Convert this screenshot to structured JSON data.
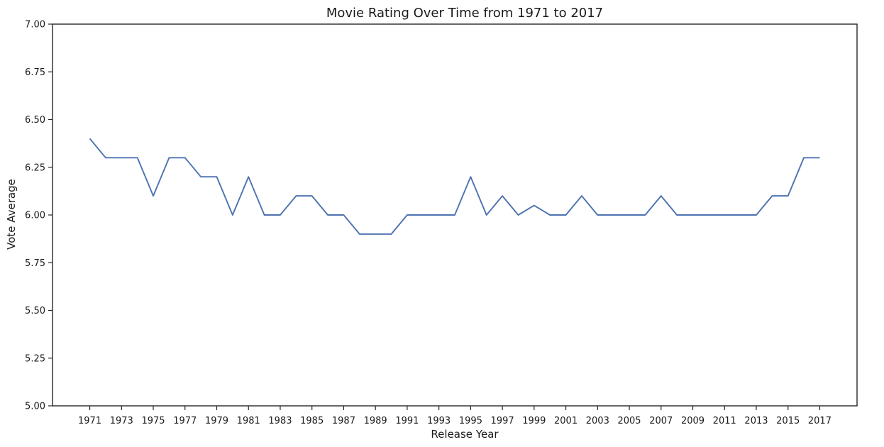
{
  "chart_data": {
    "type": "line",
    "title": "Movie Rating Over Time from 1971 to 2017",
    "xlabel": "Release Year",
    "ylabel": "Vote Average",
    "ylim": [
      5.0,
      7.0
    ],
    "yticks": [
      5.0,
      5.25,
      5.5,
      5.75,
      6.0,
      6.25,
      6.5,
      6.75,
      7.0
    ],
    "ytick_labels": [
      "5.00",
      "5.25",
      "5.50",
      "5.75",
      "6.00",
      "6.25",
      "6.50",
      "6.75",
      "7.00"
    ],
    "xticks": [
      1971,
      1973,
      1975,
      1977,
      1979,
      1981,
      1983,
      1985,
      1987,
      1989,
      1991,
      1993,
      1995,
      1997,
      1999,
      2001,
      2003,
      2005,
      2007,
      2009,
      2011,
      2013,
      2015,
      2017
    ],
    "grid": false,
    "color": "#4c72b0",
    "series": [
      {
        "x": [
          1971,
          1972,
          1973,
          1974,
          1975,
          1976,
          1977,
          1978,
          1979,
          1980,
          1981,
          1982,
          1983,
          1984,
          1985,
          1986,
          1987,
          1988,
          1989,
          1990,
          1991,
          1992,
          1993,
          1994,
          1995,
          1996,
          1997,
          1998,
          1999,
          2000,
          2001,
          2002,
          2003,
          2004,
          2005,
          2006,
          2007,
          2008,
          2009,
          2010,
          2011,
          2012,
          2013,
          2014,
          2015,
          2016,
          2017
        ],
        "values": [
          6.4,
          6.3,
          6.3,
          6.3,
          6.1,
          6.3,
          6.3,
          6.2,
          6.2,
          6.0,
          6.2,
          6.0,
          6.0,
          6.1,
          6.1,
          6.0,
          6.0,
          5.9,
          5.9,
          5.9,
          6.0,
          6.0,
          6.0,
          6.0,
          6.2,
          6.0,
          6.1,
          6.0,
          6.05,
          6.0,
          6.0,
          6.1,
          6.0,
          6.0,
          6.0,
          6.0,
          6.1,
          6.0,
          6.0,
          6.0,
          6.0,
          6.0,
          6.0,
          6.1,
          6.1,
          6.3,
          6.3
        ]
      }
    ]
  }
}
